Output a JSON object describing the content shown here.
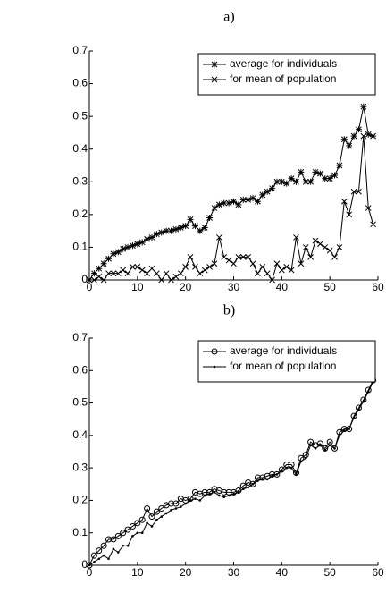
{
  "chart_data": [
    {
      "type": "line",
      "title": "a)",
      "x": [
        0,
        1,
        2,
        3,
        4,
        5,
        6,
        7,
        8,
        9,
        10,
        11,
        12,
        13,
        14,
        15,
        16,
        17,
        18,
        19,
        20,
        21,
        22,
        23,
        24,
        25,
        26,
        27,
        28,
        29,
        30,
        31,
        32,
        33,
        34,
        35,
        36,
        37,
        38,
        39,
        40,
        41,
        42,
        43,
        44,
        45,
        46,
        47,
        48,
        49,
        50,
        51,
        52,
        53,
        54,
        55,
        56,
        57,
        58,
        59
      ],
      "series": [
        {
          "name": "average for individuals",
          "color": "#000000",
          "marker": "star",
          "values": [
            0,
            0.02,
            0.035,
            0.05,
            0.065,
            0.08,
            0.085,
            0.095,
            0.1,
            0.105,
            0.11,
            0.115,
            0.125,
            0.13,
            0.14,
            0.145,
            0.15,
            0.15,
            0.155,
            0.16,
            0.165,
            0.185,
            0.165,
            0.15,
            0.16,
            0.19,
            0.22,
            0.23,
            0.235,
            0.235,
            0.24,
            0.23,
            0.245,
            0.245,
            0.25,
            0.24,
            0.26,
            0.27,
            0.28,
            0.3,
            0.3,
            0.295,
            0.31,
            0.3,
            0.33,
            0.3,
            0.3,
            0.33,
            0.325,
            0.31,
            0.31,
            0.32,
            0.35,
            0.43,
            0.41,
            0.44,
            0.46,
            0.53,
            0.445,
            0.44
          ]
        },
        {
          "name": "for mean of population",
          "color": "#000000",
          "marker": "x",
          "values": [
            0,
            0,
            0.01,
            0,
            0.02,
            0.02,
            0.02,
            0.03,
            0.02,
            0.04,
            0.04,
            0.03,
            0.02,
            0.035,
            0.02,
            0,
            0.02,
            0,
            0.01,
            0.02,
            0.04,
            0.07,
            0.04,
            0.02,
            0.03,
            0.04,
            0.05,
            0.13,
            0.07,
            0.06,
            0.05,
            0.07,
            0.07,
            0.07,
            0.05,
            0.02,
            0.04,
            0.02,
            0,
            0.05,
            0.03,
            0.04,
            0.03,
            0.13,
            0.05,
            0.1,
            0.07,
            0.12,
            0.11,
            0.1,
            0.09,
            0.07,
            0.1,
            0.24,
            0.2,
            0.27,
            0.27,
            0.44,
            0.22,
            0.17
          ]
        }
      ],
      "xlim": [
        0,
        60
      ],
      "xticks": [
        0,
        10,
        20,
        30,
        40,
        50,
        60
      ],
      "ylim": [
        0,
        0.7
      ],
      "yticks": [
        0,
        0.1,
        0.2,
        0.3,
        0.4,
        0.5,
        0.6,
        0.7
      ],
      "legend": "upper right"
    },
    {
      "type": "line",
      "title": "b)",
      "x": [
        0,
        1,
        2,
        3,
        4,
        5,
        6,
        7,
        8,
        9,
        10,
        11,
        12,
        13,
        14,
        15,
        16,
        17,
        18,
        19,
        20,
        21,
        22,
        23,
        24,
        25,
        26,
        27,
        28,
        29,
        30,
        31,
        32,
        33,
        34,
        35,
        36,
        37,
        38,
        39,
        40,
        41,
        42,
        43,
        44,
        45,
        46,
        47,
        48,
        49,
        50,
        51,
        52,
        53,
        54,
        55,
        56,
        57,
        58,
        59
      ],
      "series": [
        {
          "name": "average for individuals",
          "color": "#000000",
          "marker": "o",
          "values": [
            0,
            0.03,
            0.045,
            0.06,
            0.08,
            0.08,
            0.09,
            0.1,
            0.11,
            0.12,
            0.13,
            0.14,
            0.175,
            0.15,
            0.165,
            0.175,
            0.185,
            0.19,
            0.19,
            0.205,
            0.2,
            0.205,
            0.225,
            0.22,
            0.225,
            0.225,
            0.235,
            0.23,
            0.225,
            0.225,
            0.225,
            0.23,
            0.245,
            0.255,
            0.25,
            0.27,
            0.27,
            0.275,
            0.28,
            0.28,
            0.295,
            0.31,
            0.31,
            0.285,
            0.33,
            0.34,
            0.38,
            0.37,
            0.375,
            0.36,
            0.38,
            0.36,
            0.41,
            0.42,
            0.42,
            0.46,
            0.485,
            0.51,
            0.54,
            0.57
          ]
        },
        {
          "name": "for mean of population",
          "color": "#000000",
          "marker": ".",
          "values": [
            0,
            0.01,
            0.02,
            0.03,
            0.02,
            0.05,
            0.04,
            0.06,
            0.06,
            0.09,
            0.1,
            0.1,
            0.13,
            0.12,
            0.14,
            0.15,
            0.16,
            0.17,
            0.175,
            0.18,
            0.19,
            0.2,
            0.205,
            0.2,
            0.215,
            0.22,
            0.225,
            0.215,
            0.21,
            0.215,
            0.22,
            0.225,
            0.235,
            0.24,
            0.25,
            0.26,
            0.265,
            0.265,
            0.275,
            0.28,
            0.29,
            0.3,
            0.3,
            0.28,
            0.32,
            0.33,
            0.37,
            0.36,
            0.37,
            0.355,
            0.37,
            0.36,
            0.4,
            0.415,
            0.42,
            0.455,
            0.48,
            0.505,
            0.535,
            0.565
          ]
        }
      ],
      "xlim": [
        0,
        60
      ],
      "xticks": [
        0,
        10,
        20,
        30,
        40,
        50,
        60
      ],
      "ylim": [
        0,
        0.7
      ],
      "yticks": [
        0,
        0.1,
        0.2,
        0.3,
        0.4,
        0.5,
        0.6,
        0.7
      ],
      "legend": "upper right"
    }
  ]
}
